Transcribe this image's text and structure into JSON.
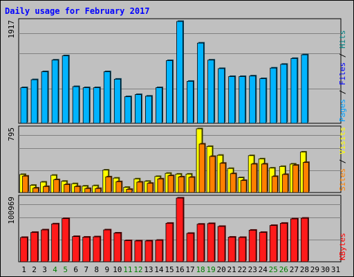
{
  "chart_data": {
    "type": "bar",
    "title": "Daily usage for February 2017",
    "x": [
      "1",
      "2",
      "3",
      "4",
      "5",
      "6",
      "7",
      "8",
      "9",
      "10",
      "11",
      "12",
      "13",
      "14",
      "15",
      "16",
      "17",
      "18",
      "19",
      "20",
      "21",
      "22",
      "23",
      "24",
      "25",
      "26",
      "27",
      "28",
      "29",
      "30",
      "31"
    ],
    "weekend_days": [
      "4",
      "5",
      "11",
      "12",
      "18",
      "19",
      "25",
      "26"
    ],
    "panels": [
      {
        "max_label": "1917",
        "ymax": 1917,
        "grid": true,
        "legend": [
          {
            "text": "Pages",
            "color": "#00a0ff"
          },
          {
            "text": " / ",
            "color": "#000000"
          },
          {
            "text": "Files",
            "color": "#0000ff"
          },
          {
            "text": " / ",
            "color": "#000000"
          },
          {
            "text": "Hits",
            "color": "#008080"
          }
        ],
        "series": [
          {
            "name": "Pages",
            "color": "#00b4ff",
            "values": [
              670,
              820,
              970,
              1190,
              1270,
              690,
              670,
              670,
              970,
              830,
              500,
              540,
              510,
              670,
              1180,
              1917,
              790,
              1510,
              1190,
              1030,
              880,
              880,
              890,
              840,
              1040,
              1110,
              1220,
              1290,
              0,
              0,
              0
            ]
          },
          {
            "name": "Files",
            "color": "#00b4ff",
            "values": [
              670,
              820,
              970,
              1190,
              1270,
              690,
              670,
              670,
              970,
              830,
              500,
              540,
              510,
              670,
              1180,
              1917,
              790,
              1510,
              1190,
              1030,
              880,
              880,
              890,
              840,
              1040,
              1110,
              1220,
              1290,
              0,
              0,
              0
            ]
          },
          {
            "name": "Hits",
            "color": "#008080",
            "values": [
              670,
              820,
              970,
              1190,
              1270,
              690,
              670,
              670,
              970,
              830,
              500,
              540,
              510,
              670,
              1180,
              1917,
              790,
              1510,
              1190,
              1030,
              880,
              880,
              890,
              840,
              1040,
              1110,
              1220,
              1290,
              0,
              0,
              0
            ]
          }
        ]
      },
      {
        "max_label": "795",
        "ymax": 795,
        "grid": true,
        "legend": [
          {
            "text": "Sites",
            "color": "#ff8000"
          },
          {
            "text": " / ",
            "color": "#000000"
          },
          {
            "text": "Visits",
            "color": "#ffff00"
          }
        ],
        "series": [
          {
            "name": "Visits",
            "color": "#ffff00",
            "values": [
              225,
              90,
              130,
              215,
              140,
              110,
              80,
              85,
              280,
              180,
              65,
              170,
              140,
              200,
              240,
              230,
              230,
              795,
              575,
              465,
              300,
              185,
              460,
              420,
              305,
              325,
              355,
              505,
              0,
              0,
              0
            ]
          },
          {
            "name": "Sites",
            "color": "#ff8000",
            "values": [
              205,
              55,
              75,
              160,
              100,
              75,
              50,
              50,
              195,
              135,
              40,
              130,
              115,
              170,
              210,
              195,
              190,
              605,
              450,
              365,
              235,
              150,
              355,
              355,
              200,
              225,
              340,
              375,
              0,
              0,
              0
            ]
          }
        ]
      },
      {
        "max_label": "100969",
        "ymax": 100969,
        "grid": true,
        "legend": [
          {
            "text": "KBytes",
            "color": "#ff0000"
          }
        ],
        "series": [
          {
            "name": "KBytes",
            "color": "#ff1a1a",
            "values": [
              38500,
              46500,
              50500,
              60000,
              68500,
              40000,
              39000,
              39500,
              50500,
              45500,
              33500,
              33000,
              33000,
              34000,
              61000,
              100969,
              45000,
              59500,
              60500,
              56000,
              39000,
              38500,
              50000,
              46500,
              57500,
              61000,
              68000,
              69000,
              0,
              0,
              0
            ]
          }
        ]
      }
    ]
  }
}
